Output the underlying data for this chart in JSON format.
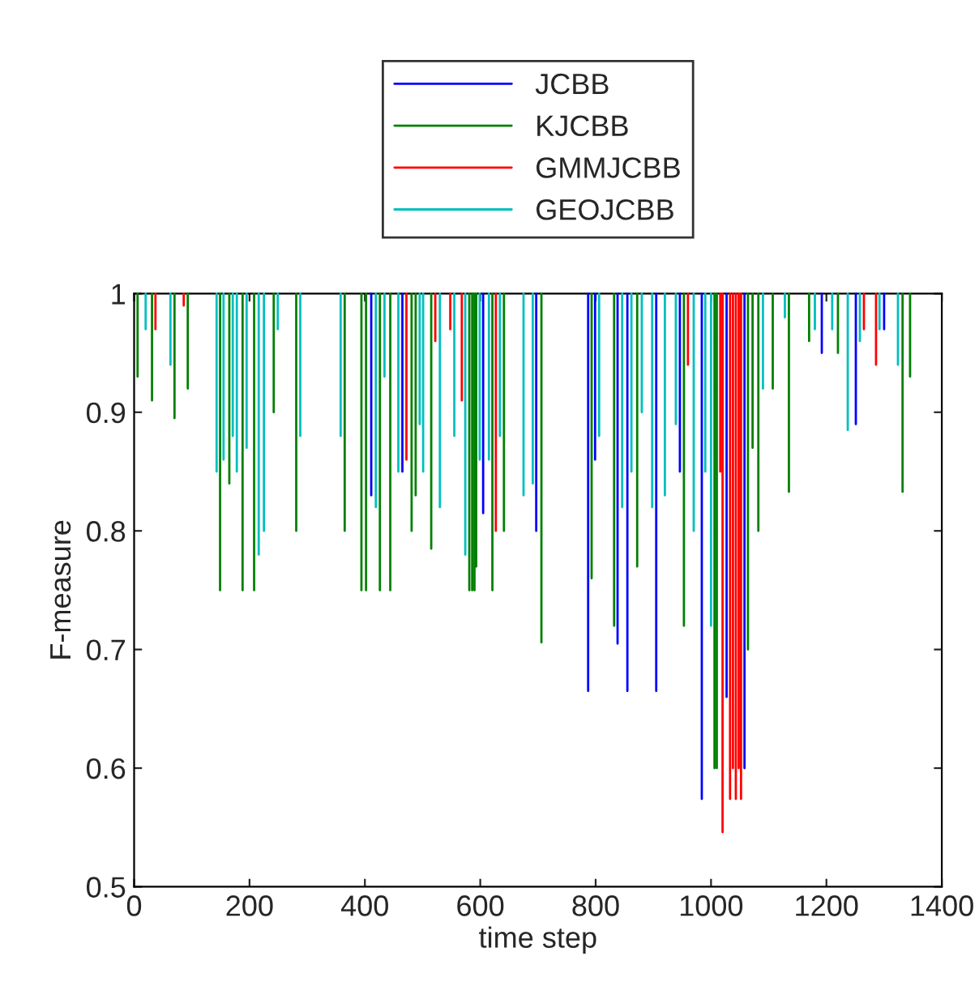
{
  "chart_data": {
    "type": "line",
    "xlabel": "time step",
    "ylabel": "F-measure",
    "xlim": [
      0,
      1400
    ],
    "xticks": [
      0,
      200,
      400,
      600,
      800,
      1000,
      1200,
      1400
    ],
    "ylim": [
      0.5,
      1
    ],
    "yticks": [
      0.5,
      0.6,
      0.7,
      0.8,
      0.9,
      1
    ],
    "grid": false,
    "legend": "top",
    "marker": "none",
    "line_style": "solid",
    "series": [
      {
        "name": "JCBB",
        "color": "#0000ff",
        "x": [
          411,
          411,
          null,
          465,
          465,
          null,
          605,
          605,
          null,
          697,
          697,
          null,
          787,
          787,
          null,
          799,
          799,
          null,
          838,
          838,
          null,
          855,
          855,
          null,
          905,
          905,
          null,
          946,
          946,
          null,
          984,
          984,
          null,
          1027,
          1027,
          null,
          1058,
          1058,
          null,
          1192,
          1192,
          null,
          1251,
          1251,
          null,
          1300,
          1300,
          null
        ],
        "values": [
          1,
          0.83,
          null,
          1,
          0.85,
          null,
          1,
          0.815,
          null,
          1,
          0.8,
          null,
          1,
          0.665,
          null,
          1,
          0.86,
          null,
          1,
          0.705,
          null,
          1,
          0.665,
          null,
          1,
          0.665,
          null,
          1,
          0.85,
          null,
          1,
          0.574,
          null,
          1,
          0.66,
          null,
          1,
          0.6,
          null,
          1,
          0.95,
          null,
          1,
          0.89,
          null,
          1,
          0.97,
          null
        ]
      },
      {
        "name": "KJCBB",
        "color": "#008000",
        "x": [
          6,
          6,
          null,
          31,
          31,
          null,
          70,
          70,
          null,
          93,
          93,
          null,
          149,
          149,
          null,
          165,
          165,
          null,
          188,
          188,
          null,
          208,
          208,
          null,
          242,
          242,
          null,
          281,
          281,
          null,
          365,
          365,
          null,
          394,
          394,
          null,
          402,
          402,
          null,
          426,
          426,
          null,
          444,
          444,
          null,
          481,
          481,
          null,
          488,
          488,
          null,
          515,
          515,
          null,
          581,
          581,
          null,
          586,
          586,
          null,
          590,
          590,
          null,
          593,
          593,
          null,
          621,
          621,
          null,
          641,
          641,
          null,
          706,
          706,
          null,
          793,
          793,
          null,
          832,
          832,
          null,
          872,
          872,
          null,
          953,
          953,
          null,
          1006,
          1006,
          null,
          1010,
          1010,
          null,
          1064,
          1064,
          null,
          1072,
          1072,
          null,
          1082,
          1082,
          null,
          1107,
          1107,
          null,
          1135,
          1135,
          null,
          1170,
          1170,
          null,
          1220,
          1220,
          null,
          1332,
          1332,
          null,
          1345,
          1345,
          null
        ],
        "values": [
          1,
          0.93,
          null,
          1,
          0.91,
          null,
          1,
          0.895,
          null,
          1,
          0.92,
          null,
          1,
          0.75,
          null,
          1,
          0.84,
          null,
          1,
          0.75,
          null,
          1,
          0.75,
          null,
          1,
          0.9,
          null,
          1,
          0.8,
          null,
          1,
          0.8,
          null,
          1,
          0.75,
          null,
          1,
          0.75,
          null,
          1,
          0.75,
          null,
          1,
          0.75,
          null,
          1,
          0.8,
          null,
          1,
          0.83,
          null,
          1,
          0.785,
          null,
          1,
          0.75,
          null,
          1,
          0.75,
          null,
          1,
          0.75,
          null,
          1,
          0.77,
          null,
          1,
          0.75,
          null,
          1,
          0.8,
          null,
          1,
          0.706,
          null,
          1,
          0.76,
          null,
          1,
          0.72,
          null,
          1,
          0.77,
          null,
          1,
          0.72,
          null,
          1,
          0.6,
          null,
          1,
          0.6,
          null,
          1,
          0.7,
          null,
          1,
          0.87,
          null,
          1,
          0.8,
          null,
          1,
          0.92,
          null,
          1,
          0.833,
          null,
          1,
          0.96,
          null,
          1,
          0.95,
          null,
          1,
          0.833,
          null,
          1,
          0.93,
          null
        ]
      },
      {
        "name": "GMMJCBB",
        "color": "#ff0000",
        "x": [
          37,
          37,
          null,
          86,
          86,
          null,
          472,
          472,
          null,
          522,
          522,
          null,
          548,
          548,
          null,
          568,
          568,
          null,
          627,
          627,
          null,
          960,
          960,
          null,
          1016,
          1016,
          null,
          1020,
          1020,
          null,
          1033,
          1033,
          null,
          1038,
          1038,
          null,
          1043,
          1043,
          null,
          1048,
          1048,
          null,
          1052,
          1052,
          null,
          1265,
          1265,
          null,
          1286,
          1286,
          null
        ],
        "values": [
          1,
          0.97,
          null,
          1,
          0.99,
          null,
          1,
          0.86,
          null,
          1,
          0.96,
          null,
          1,
          0.97,
          null,
          1,
          0.91,
          null,
          1,
          0.8,
          null,
          1,
          0.94,
          null,
          1,
          0.85,
          null,
          1,
          0.546,
          null,
          1,
          0.574,
          null,
          1,
          0.6,
          null,
          1,
          0.574,
          null,
          1,
          0.6,
          null,
          1,
          0.574,
          null,
          1,
          0.97,
          null,
          1,
          0.94,
          null
        ]
      },
      {
        "name": "GEOJCBB",
        "color": "#00bfbf",
        "x": [
          20,
          20,
          null,
          63,
          63,
          null,
          143,
          143,
          null,
          155,
          155,
          null,
          171,
          171,
          null,
          178,
          178,
          null,
          195,
          195,
          null,
          216,
          216,
          null,
          225,
          225,
          null,
          249,
          249,
          null,
          288,
          288,
          null,
          358,
          358,
          null,
          419,
          419,
          null,
          434,
          434,
          null,
          458,
          458,
          null,
          495,
          495,
          null,
          501,
          501,
          null,
          530,
          530,
          null,
          555,
          555,
          null,
          574,
          574,
          null,
          599,
          599,
          null,
          615,
          615,
          null,
          634,
          634,
          null,
          675,
          675,
          null,
          691,
          691,
          null,
          806,
          806,
          null,
          846,
          846,
          null,
          862,
          862,
          null,
          880,
          880,
          null,
          898,
          898,
          null,
          920,
          920,
          null,
          939,
          939,
          null,
          970,
          970,
          null,
          990,
          990,
          null,
          1000,
          1000,
          null,
          1090,
          1090,
          null,
          1128,
          1128,
          null,
          1180,
          1180,
          null,
          1210,
          1210,
          null,
          1237,
          1237,
          null,
          1258,
          1258,
          null,
          1292,
          1292,
          null,
          1324,
          1324,
          null
        ],
        "values": [
          1,
          0.97,
          null,
          1,
          0.94,
          null,
          1,
          0.85,
          null,
          1,
          0.86,
          null,
          1,
          0.88,
          null,
          1,
          0.85,
          null,
          1,
          0.87,
          null,
          1,
          0.78,
          null,
          1,
          0.8,
          null,
          1,
          0.97,
          null,
          1,
          0.88,
          null,
          1,
          0.88,
          null,
          1,
          0.82,
          null,
          1,
          0.93,
          null,
          1,
          0.85,
          null,
          1,
          0.89,
          null,
          1,
          0.85,
          null,
          1,
          0.82,
          null,
          1,
          0.88,
          null,
          1,
          0.78,
          null,
          1,
          0.86,
          null,
          1,
          0.86,
          null,
          1,
          0.88,
          null,
          1,
          0.83,
          null,
          1,
          0.84,
          null,
          1,
          0.88,
          null,
          1,
          0.82,
          null,
          1,
          0.85,
          null,
          1,
          0.9,
          null,
          1,
          0.82,
          null,
          1,
          0.83,
          null,
          1,
          0.89,
          null,
          1,
          0.8,
          null,
          1,
          0.85,
          null,
          1,
          0.72,
          null,
          1,
          0.92,
          null,
          1,
          0.98,
          null,
          1,
          0.97,
          null,
          1,
          0.97,
          null,
          1,
          0.885,
          null,
          1,
          0.96,
          null,
          1,
          0.97,
          null,
          1,
          0.94,
          null
        ]
      }
    ]
  }
}
